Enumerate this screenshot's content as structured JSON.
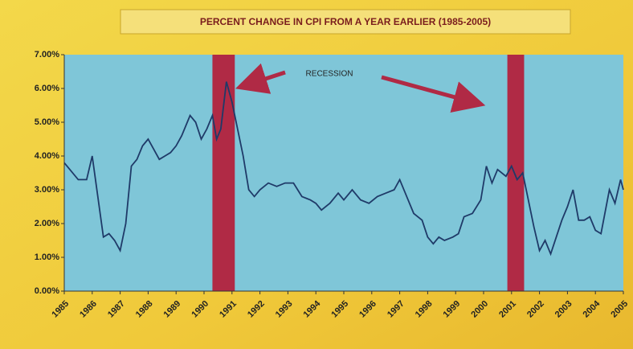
{
  "chart_data": {
    "type": "line",
    "title": "PERCENT CHANGE IN CPI FROM A YEAR EARLIER (1985-2005)",
    "annotation": "RECESSION",
    "recessions": [
      [
        1990.3,
        1991.1
      ],
      [
        2000.85,
        2001.45
      ]
    ],
    "recession_color": "#b02a45",
    "xlim": [
      1985,
      2005
    ],
    "xticks": [
      1985,
      1986,
      1987,
      1988,
      1989,
      1990,
      1991,
      1992,
      1993,
      1994,
      1995,
      1996,
      1997,
      1998,
      1999,
      2000,
      2001,
      2002,
      2003,
      2004,
      2005
    ],
    "ylim": [
      0,
      7
    ],
    "yticks": [
      {
        "value": 0,
        "label": "0.00%"
      },
      {
        "value": 1,
        "label": "1.00%"
      },
      {
        "value": 2,
        "label": "2.00%"
      },
      {
        "value": 3,
        "label": "3.00%"
      },
      {
        "value": 4,
        "label": "4.00%"
      },
      {
        "value": 5,
        "label": "5.00%"
      },
      {
        "value": 6,
        "label": "6.00%"
      },
      {
        "value": 7,
        "label": "7.00%"
      }
    ],
    "grid": false,
    "series": [
      {
        "color": "#1f3a68",
        "x": [
          1985.0,
          1985.2,
          1985.5,
          1985.8,
          1986.0,
          1986.2,
          1986.4,
          1986.6,
          1986.8,
          1987.0,
          1987.2,
          1987.4,
          1987.6,
          1987.8,
          1988.0,
          1988.2,
          1988.4,
          1988.6,
          1988.8,
          1989.0,
          1989.2,
          1989.5,
          1989.7,
          1989.9,
          1990.1,
          1990.3,
          1990.45,
          1990.6,
          1990.8,
          1991.0,
          1991.2,
          1991.4,
          1991.6,
          1991.8,
          1992.0,
          1992.3,
          1992.6,
          1992.9,
          1993.2,
          1993.5,
          1993.8,
          1994.0,
          1994.2,
          1994.5,
          1994.8,
          1995.0,
          1995.3,
          1995.6,
          1995.9,
          1996.2,
          1996.5,
          1996.8,
          1997.0,
          1997.2,
          1997.5,
          1997.8,
          1998.0,
          1998.2,
          1998.4,
          1998.6,
          1998.9,
          1999.1,
          1999.3,
          1999.6,
          1999.9,
          2000.1,
          2000.3,
          2000.5,
          2000.8,
          2001.0,
          2001.2,
          2001.4,
          2001.6,
          2001.8,
          2002.0,
          2002.2,
          2002.4,
          2002.6,
          2002.8,
          2003.0,
          2003.2,
          2003.4,
          2003.6,
          2003.8,
          2004.0,
          2004.2,
          2004.5,
          2004.7,
          2004.9,
          2005.0
        ],
        "values": [
          3.8,
          3.6,
          3.3,
          3.3,
          4.0,
          2.8,
          1.6,
          1.7,
          1.5,
          1.2,
          2.0,
          3.7,
          3.9,
          4.3,
          4.5,
          4.2,
          3.9,
          4.0,
          4.1,
          4.3,
          4.6,
          5.2,
          5.0,
          4.5,
          4.8,
          5.2,
          4.5,
          4.8,
          6.2,
          5.6,
          4.8,
          4.0,
          3.0,
          2.8,
          3.0,
          3.2,
          3.1,
          3.2,
          3.2,
          2.8,
          2.7,
          2.6,
          2.4,
          2.6,
          2.9,
          2.7,
          3.0,
          2.7,
          2.6,
          2.8,
          2.9,
          3.0,
          3.3,
          2.9,
          2.3,
          2.1,
          1.6,
          1.4,
          1.6,
          1.5,
          1.6,
          1.7,
          2.2,
          2.3,
          2.7,
          3.7,
          3.2,
          3.6,
          3.4,
          3.7,
          3.3,
          3.5,
          2.7,
          1.9,
          1.2,
          1.5,
          1.1,
          1.6,
          2.1,
          2.5,
          3.0,
          2.1,
          2.1,
          2.2,
          1.8,
          1.7,
          3.0,
          2.6,
          3.3,
          3.0
        ]
      }
    ]
  }
}
